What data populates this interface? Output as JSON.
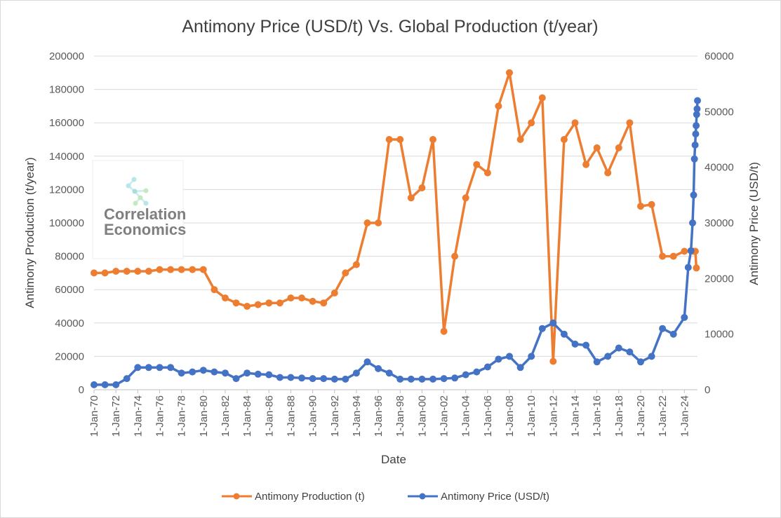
{
  "chart_data": {
    "type": "line",
    "title": "Antimony Price (USD/t) Vs. Global Production (t/year)",
    "xlabel": "Date",
    "ylabel_left": "Antimony Production (t/year)",
    "ylabel_right": "Antimony Price (USD/t)",
    "ylim_left": [
      0,
      200000
    ],
    "ylim_right": [
      0,
      60000
    ],
    "yticks_left": [
      "0",
      "20000",
      "40000",
      "60000",
      "80000",
      "100000",
      "120000",
      "140000",
      "160000",
      "180000",
      "200000"
    ],
    "yticks_right": [
      "0",
      "10000",
      "20000",
      "30000",
      "40000",
      "50000",
      "60000"
    ],
    "xticks": [
      "1-Jan-70",
      "1-Jan-72",
      "1-Jan-74",
      "1-Jan-76",
      "1-Jan-78",
      "1-Jan-80",
      "1-Jan-82",
      "1-Jan-84",
      "1-Jan-86",
      "1-Jan-88",
      "1-Jan-90",
      "1-Jan-92",
      "1-Jan-94",
      "1-Jan-96",
      "1-Jan-98",
      "1-Jan-00",
      "1-Jan-02",
      "1-Jan-04",
      "1-Jan-06",
      "1-Jan-08",
      "1-Jan-10",
      "1-Jan-12",
      "1-Jan-14",
      "1-Jan-16",
      "1-Jan-18",
      "1-Jan-20",
      "1-Jan-22",
      "1-Jan-24"
    ],
    "grid": true,
    "legend_position": "bottom",
    "series": [
      {
        "name": "Antimony Production (t)",
        "axis": "left",
        "color": "#ED7D31",
        "x": [
          1970,
          1971,
          1972,
          1973,
          1974,
          1975,
          1976,
          1977,
          1978,
          1979,
          1980,
          1981,
          1982,
          1983,
          1984,
          1985,
          1986,
          1987,
          1988,
          1989,
          1990,
          1991,
          1992,
          1993,
          1994,
          1995,
          1996,
          1997,
          1998,
          1999,
          2000,
          2001,
          2002,
          2003,
          2004,
          2005,
          2006,
          2007,
          2008,
          2009,
          2010,
          2011,
          2012,
          2013,
          2014,
          2015,
          2016,
          2017,
          2018,
          2019,
          2020,
          2021,
          2022,
          2023,
          2024,
          2024.8,
          2025.0,
          2025.1
        ],
        "values": [
          70000,
          70000,
          71000,
          71000,
          71000,
          71000,
          72000,
          72000,
          72000,
          72000,
          72000,
          60000,
          55000,
          52000,
          50000,
          51000,
          52000,
          52000,
          55000,
          55000,
          53000,
          52000,
          58000,
          70000,
          75000,
          100000,
          100000,
          150000,
          150000,
          115000,
          121000,
          150000,
          35000,
          80000,
          115000,
          135000,
          130000,
          170000,
          190000,
          150000,
          160000,
          175000,
          17000,
          150000,
          160000,
          135000,
          145000,
          130000,
          145000,
          160000,
          110000,
          111000,
          80000,
          80000,
          83000,
          83000,
          83000,
          73000
        ]
      },
      {
        "name": "Antimony Price (USD/t)",
        "axis": "right",
        "color": "#4472C4",
        "x": [
          1970,
          1971,
          1972,
          1973,
          1974,
          1975,
          1976,
          1977,
          1978,
          1979,
          1980,
          1981,
          1982,
          1983,
          1984,
          1985,
          1986,
          1987,
          1988,
          1989,
          1990,
          1991,
          1992,
          1993,
          1994,
          1995,
          1996,
          1997,
          1998,
          1999,
          2000,
          2001,
          2002,
          2003,
          2004,
          2005,
          2006,
          2007,
          2008,
          2009,
          2010,
          2011,
          2012,
          2013,
          2014,
          2015,
          2016,
          2017,
          2018,
          2019,
          2020,
          2021,
          2022,
          2023,
          2024,
          2024.35,
          2024.6,
          2024.75,
          2024.85,
          2024.92,
          2024.98,
          2025.03,
          2025.08,
          2025.12,
          2025.16,
          2025.2
        ],
        "values": [
          900,
          900,
          900,
          2000,
          4000,
          4000,
          4000,
          4000,
          3000,
          3200,
          3500,
          3200,
          3000,
          2000,
          3000,
          2800,
          2700,
          2200,
          2200,
          2100,
          2000,
          2000,
          1900,
          1900,
          3000,
          5000,
          3800,
          3000,
          1900,
          1900,
          1900,
          1900,
          2000,
          2100,
          2700,
          3200,
          4100,
          5500,
          6000,
          4000,
          6000,
          11000,
          12000,
          10000,
          8200,
          8000,
          5000,
          6000,
          7500,
          6800,
          5000,
          6000,
          11000,
          10000,
          13000,
          22000,
          25000,
          30000,
          35000,
          41500,
          44000,
          46000,
          47500,
          49500,
          50500,
          52000
        ]
      }
    ]
  },
  "logo": {
    "line1": "Correlation",
    "line2": "Economics"
  }
}
